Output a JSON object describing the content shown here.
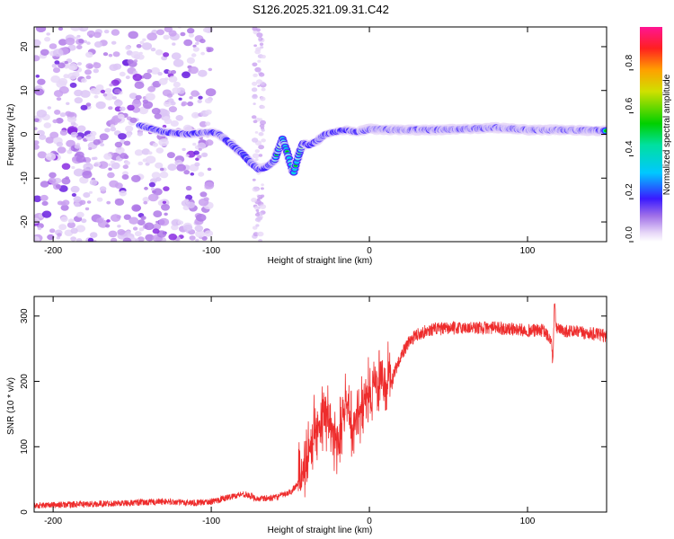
{
  "title": "S126.2025.321.09.31.C42",
  "colors": {
    "snr_line": "#ee2c2c",
    "axis": "#000000",
    "colormap": [
      "#e8d8f8",
      "#c9a0f0",
      "#8a2be2",
      "#3a1aff",
      "#1e90ff",
      "#00e5e5",
      "#00d000",
      "#c8e000",
      "#ffd000",
      "#ff2a1a",
      "#ff1493"
    ]
  },
  "chart_data": [
    {
      "type": "heatmap",
      "title": "S126.2025.321.09.31.C42",
      "xlabel": "Height of straight line (km)",
      "ylabel": "Frequency (Hz)",
      "xlim": [
        -212,
        150
      ],
      "ylim": [
        -24.5,
        24.5
      ],
      "xticks": [
        -200,
        -100,
        0,
        100
      ],
      "yticks": [
        -20,
        -10,
        0,
        10,
        20
      ],
      "colorbar": {
        "label": "Normalized spectral amplitude",
        "range": [
          0,
          1
        ],
        "ticks": [
          0.0,
          0.2,
          0.4,
          0.6,
          0.8
        ]
      },
      "ridge": {
        "description": "dominant frequency track vs height",
        "x": [
          -145,
          -130,
          -115,
          -100,
          -95,
          -90,
          -85,
          -80,
          -75,
          -70,
          -65,
          -60,
          -55,
          -52,
          -48,
          -45,
          -42,
          -38,
          -33,
          -28,
          -22,
          -15,
          -8,
          0,
          20,
          40,
          60,
          80,
          100,
          120,
          150
        ],
        "y": [
          2.0,
          0.5,
          0.0,
          0.5,
          0.0,
          -1.5,
          -3.0,
          -4.5,
          -6.5,
          -8.0,
          -7.5,
          -6.0,
          -1.0,
          -4.0,
          -9.0,
          -5.0,
          -2.0,
          -2.5,
          -1.5,
          0.0,
          0.5,
          1.0,
          0.5,
          1.2,
          1.0,
          1.0,
          1.2,
          1.5,
          1.0,
          1.0,
          0.8
        ]
      },
      "noise_region": [
        -212,
        -100
      ],
      "noise_column": -70
    },
    {
      "type": "line",
      "xlabel": "Height of straight line (km)",
      "ylabel": "SNR (10 * v/v)",
      "xlim": [
        -212,
        150
      ],
      "ylim": [
        0,
        330
      ],
      "xticks": [
        -200,
        -100,
        0,
        100
      ],
      "yticks": [
        0,
        100,
        200,
        300
      ],
      "series": [
        {
          "name": "SNR",
          "x": [
            -212,
            -180,
            -150,
            -130,
            -110,
            -100,
            -90,
            -80,
            -70,
            -60,
            -50,
            -45,
            -40,
            -35,
            -30,
            -25,
            -20,
            -15,
            -10,
            -5,
            0,
            5,
            10,
            15,
            20,
            25,
            30,
            40,
            60,
            80,
            100,
            110,
            115,
            116,
            117,
            118,
            120,
            130,
            150
          ],
          "values": [
            10,
            12,
            14,
            16,
            14,
            16,
            22,
            28,
            20,
            22,
            30,
            45,
            80,
            115,
            150,
            140,
            110,
            170,
            130,
            160,
            180,
            200,
            195,
            210,
            240,
            260,
            272,
            280,
            282,
            282,
            278,
            278,
            262,
            228,
            320,
            285,
            278,
            276,
            270
          ]
        }
      ]
    }
  ]
}
